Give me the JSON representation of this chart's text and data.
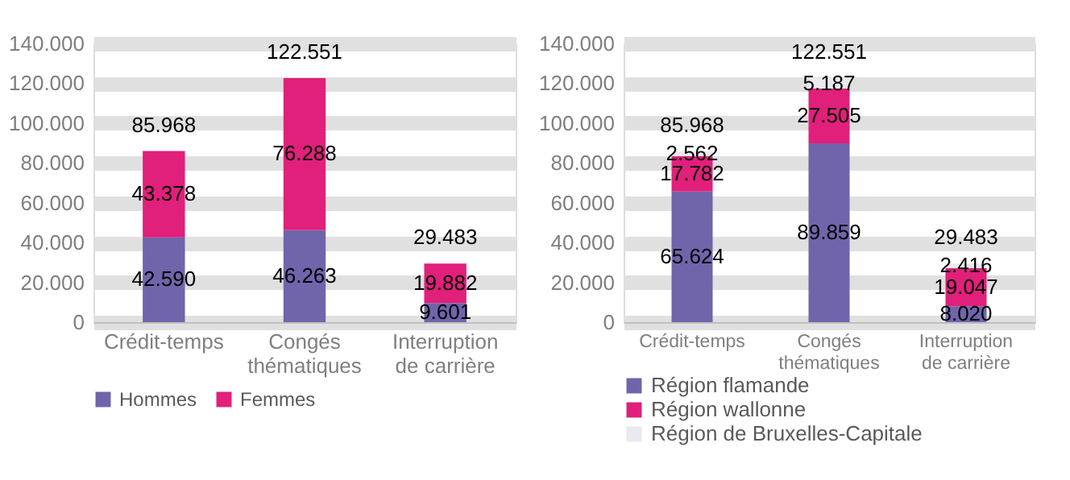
{
  "chart_data": [
    {
      "type": "bar",
      "stacked": true,
      "categories": [
        "Crédit-temps",
        "Congés thématiques",
        "Interruption de carrière"
      ],
      "series": [
        {
          "name": "Hommes",
          "color": "#7065ab",
          "values": [
            42590,
            46263,
            9601
          ],
          "value_labels": [
            "42.590",
            "46.263",
            "9.601"
          ]
        },
        {
          "name": "Femmes",
          "color": "#e0207a",
          "values": [
            43378,
            76288,
            19882
          ],
          "value_labels": [
            "43.378",
            "76.288",
            "19.882"
          ]
        }
      ],
      "totals": [
        "85.968",
        "122.551",
        "29.483"
      ],
      "ylim": [
        0,
        140000
      ],
      "yticks": [
        0,
        {
          "value": 20000,
          "label": "20.000"
        },
        {
          "value": 40000,
          "label": "40.000"
        },
        {
          "value": 60000,
          "label": "60.000"
        },
        {
          "value": 80000,
          "label": "80.000"
        },
        {
          "value": 100000,
          "label": "100.000"
        },
        {
          "value": 120000,
          "label": "120.000"
        },
        {
          "value": 140000,
          "label": "140.000"
        }
      ],
      "grid": "y",
      "legend": "bottom"
    },
    {
      "type": "bar",
      "stacked": true,
      "categories": [
        "Crédit-temps",
        "Congés thématiques",
        "Interruption de carrière"
      ],
      "series": [
        {
          "name": "Région flamande",
          "color": "#7065ab",
          "values": [
            65624,
            89859,
            8020
          ],
          "value_labels": [
            "65.624",
            "89.859",
            "8.020"
          ]
        },
        {
          "name": "Région wallonne",
          "color": "#e0207a",
          "values": [
            17782,
            27505,
            19047
          ],
          "value_labels": [
            "17.782",
            "27.505",
            "19.047"
          ]
        },
        {
          "name": "Région de Bruxelles-Capitale",
          "color": "#e9e9ef",
          "values": [
            2562,
            5187,
            2416
          ],
          "value_labels": [
            "2.562",
            "5.187",
            "2.416"
          ]
        }
      ],
      "totals": [
        "85.968",
        "122.551",
        "29.483"
      ],
      "ylim": [
        0,
        140000
      ],
      "yticks": [
        0,
        {
          "value": 20000,
          "label": "20.000"
        },
        {
          "value": 40000,
          "label": "40.000"
        },
        {
          "value": 60000,
          "label": "60.000"
        },
        {
          "value": 80000,
          "label": "80.000"
        },
        {
          "value": 100000,
          "label": "100.000"
        },
        {
          "value": 120000,
          "label": "120.000"
        },
        {
          "value": 140000,
          "label": "140.000"
        }
      ],
      "grid": "y",
      "legend": "bottom left"
    }
  ]
}
